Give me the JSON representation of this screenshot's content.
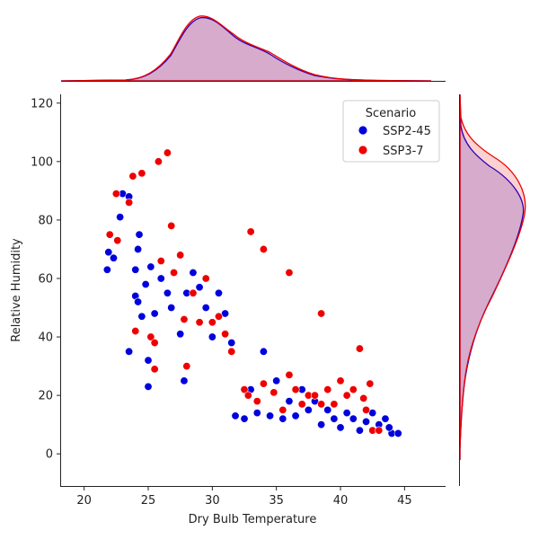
{
  "chart_data": {
    "type": "scatter",
    "title": "",
    "xlabel": "Dry Bulb Temperature",
    "ylabel": "Relative Humidity",
    "xlim": [
      18.2,
      48.2
    ],
    "ylim": [
      -11,
      123
    ],
    "xticks": [
      20,
      25,
      30,
      35,
      40,
      45
    ],
    "yticks": [
      0,
      20,
      40,
      60,
      80,
      100,
      120
    ],
    "grid": false,
    "legend": {
      "title": "Scenario",
      "placement": "top-right"
    },
    "marginal": "kde",
    "series": [
      {
        "name": "SSP2-45",
        "color": "#0000dd",
        "points": [
          [
            21.8,
            63
          ],
          [
            21.9,
            69
          ],
          [
            22.3,
            67
          ],
          [
            22.8,
            81
          ],
          [
            23.0,
            89
          ],
          [
            23.5,
            88
          ],
          [
            23.5,
            35
          ],
          [
            24.0,
            63
          ],
          [
            24.0,
            54
          ],
          [
            24.2,
            52
          ],
          [
            24.2,
            70
          ],
          [
            24.3,
            75
          ],
          [
            24.5,
            47
          ],
          [
            24.8,
            58
          ],
          [
            25.0,
            32
          ],
          [
            25.0,
            23
          ],
          [
            25.2,
            64
          ],
          [
            25.5,
            48
          ],
          [
            26.0,
            60
          ],
          [
            26.5,
            55
          ],
          [
            26.8,
            50
          ],
          [
            27.5,
            41
          ],
          [
            27.8,
            25
          ],
          [
            28.0,
            55
          ],
          [
            28.5,
            62
          ],
          [
            29.0,
            57
          ],
          [
            29.5,
            50
          ],
          [
            30.0,
            40
          ],
          [
            30.5,
            55
          ],
          [
            31.0,
            48
          ],
          [
            31.5,
            38
          ],
          [
            31.8,
            13
          ],
          [
            32.5,
            12
          ],
          [
            33.0,
            22
          ],
          [
            33.5,
            14
          ],
          [
            34.0,
            35
          ],
          [
            34.5,
            13
          ],
          [
            35.0,
            25
          ],
          [
            35.5,
            12
          ],
          [
            36.0,
            18
          ],
          [
            36.5,
            13
          ],
          [
            37.0,
            22
          ],
          [
            37.5,
            15
          ],
          [
            38.0,
            18
          ],
          [
            38.5,
            10
          ],
          [
            39.0,
            15
          ],
          [
            39.5,
            12
          ],
          [
            40.0,
            9
          ],
          [
            40.5,
            14
          ],
          [
            41.0,
            12
          ],
          [
            41.5,
            8
          ],
          [
            42.0,
            11
          ],
          [
            42.5,
            14
          ],
          [
            43.0,
            10
          ],
          [
            43.5,
            12
          ],
          [
            44.0,
            7
          ],
          [
            44.5,
            7
          ],
          [
            43.8,
            9
          ]
        ]
      },
      {
        "name": "SSP3-7",
        "color": "#ee0000",
        "points": [
          [
            22.0,
            75
          ],
          [
            22.5,
            89
          ],
          [
            22.6,
            73
          ],
          [
            23.5,
            86
          ],
          [
            23.8,
            95
          ],
          [
            24.0,
            42
          ],
          [
            24.5,
            96
          ],
          [
            25.2,
            40
          ],
          [
            25.5,
            38
          ],
          [
            25.5,
            29
          ],
          [
            25.8,
            100
          ],
          [
            26.0,
            66
          ],
          [
            26.5,
            103
          ],
          [
            26.8,
            78
          ],
          [
            27.0,
            62
          ],
          [
            27.5,
            68
          ],
          [
            27.8,
            46
          ],
          [
            28.0,
            30
          ],
          [
            28.5,
            55
          ],
          [
            29.0,
            45
          ],
          [
            29.5,
            60
          ],
          [
            30.0,
            45
          ],
          [
            30.5,
            47
          ],
          [
            31.0,
            41
          ],
          [
            31.5,
            35
          ],
          [
            32.5,
            22
          ],
          [
            32.8,
            20
          ],
          [
            33.5,
            18
          ],
          [
            34.0,
            24
          ],
          [
            34.8,
            21
          ],
          [
            35.5,
            15
          ],
          [
            36.0,
            27
          ],
          [
            36.5,
            22
          ],
          [
            37.0,
            17
          ],
          [
            37.5,
            20
          ],
          [
            38.0,
            20
          ],
          [
            38.5,
            17
          ],
          [
            39.0,
            22
          ],
          [
            39.5,
            17
          ],
          [
            40.0,
            25
          ],
          [
            40.5,
            20
          ],
          [
            41.0,
            22
          ],
          [
            41.5,
            36
          ],
          [
            41.8,
            19
          ],
          [
            42.0,
            15
          ],
          [
            42.3,
            24
          ],
          [
            42.5,
            8
          ],
          [
            43.0,
            8
          ],
          [
            36.0,
            62
          ],
          [
            38.5,
            48
          ],
          [
            34.0,
            70
          ],
          [
            33.0,
            76
          ]
        ]
      }
    ]
  }
}
